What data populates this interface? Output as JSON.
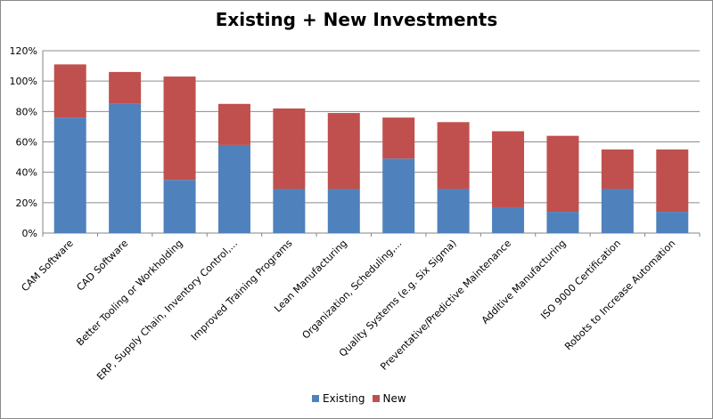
{
  "chart_data": {
    "type": "bar",
    "stacked": true,
    "title": "Existing + New Investments",
    "categories": [
      "CAM Software",
      "CAD Software",
      "Better Tooling or Workholding",
      "ERP, Supply Chain, Inventory Control,...",
      "Improved Training Programs",
      "Lean Manufacturing",
      "Organization, Scheduling,...",
      "Quality Systems (e.g. Six Sigma)",
      "Preventative/Predictive Maintenance",
      "Additive Manufacturing",
      "ISO 9000 Certification",
      "Robots to Increase Automation"
    ],
    "series": [
      {
        "name": "Existing",
        "color": "#4f81bd",
        "values": [
          76,
          85,
          35,
          58,
          29,
          29,
          49,
          29,
          17,
          14,
          29,
          14
        ]
      },
      {
        "name": "New",
        "color": "#c0504d",
        "values": [
          35,
          21,
          68,
          27,
          53,
          50,
          27,
          44,
          50,
          50,
          26,
          41
        ]
      }
    ],
    "yticks": [
      "0%",
      "20%",
      "40%",
      "60%",
      "80%",
      "100%",
      "120%"
    ],
    "ylim": [
      0,
      120
    ],
    "grid": true,
    "legend": "bottom"
  }
}
